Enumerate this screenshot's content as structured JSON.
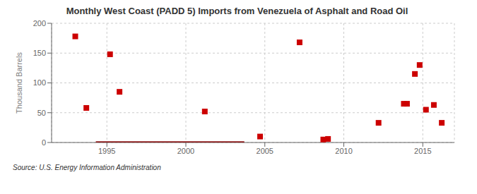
{
  "chart_data": {
    "type": "scatter",
    "title": "Monthly West Coast (PADD 5) Imports from Venezuela of Asphalt and Road Oil",
    "ylabel": "Thousand Barrels",
    "annotation": "Source: U.S. Energy Information Administration",
    "xlim": [
      1991.5,
      2017
    ],
    "ylim": [
      0,
      200
    ],
    "xticks": [
      1995,
      2000,
      2005,
      2010,
      2015
    ],
    "yticks": [
      0,
      50,
      100,
      150,
      200
    ],
    "grid": true,
    "series": [
      {
        "type": "scatter",
        "marker": "square",
        "color": "#cc0000",
        "x": [
          1993.0,
          1993.7,
          1995.2,
          1995.8,
          2001.2,
          2004.7,
          2007.2,
          2008.7,
          2009.0,
          2012.2,
          2013.8,
          2014.0,
          2014.5,
          2014.8,
          2015.2,
          2015.7,
          2016.2
        ],
        "values": [
          178,
          58,
          148,
          85,
          52,
          10,
          168,
          5,
          6,
          33,
          65,
          65,
          115,
          130,
          55,
          63,
          33
        ]
      },
      {
        "type": "line",
        "color": "#8b1a1a",
        "x": [
          1994.3,
          2003.7
        ],
        "values": [
          0,
          0
        ]
      }
    ]
  }
}
